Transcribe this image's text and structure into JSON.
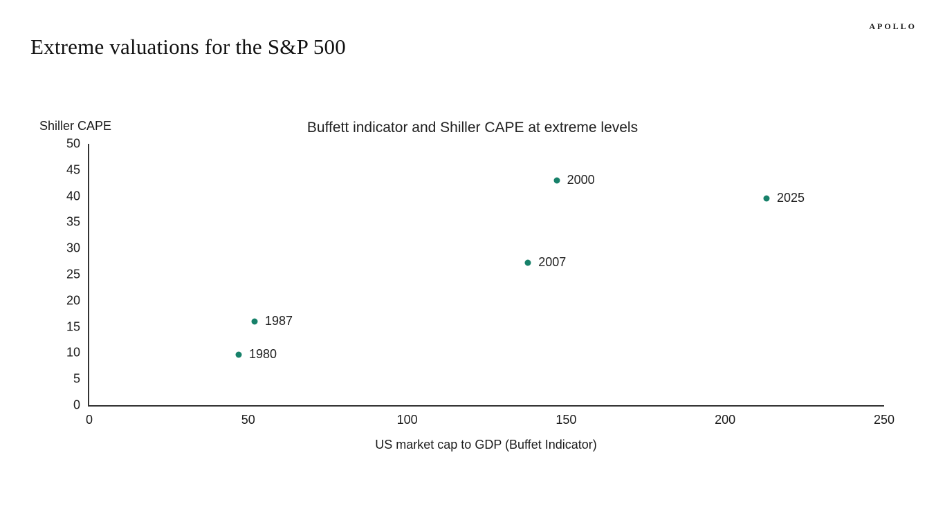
{
  "brand": {
    "logo_text": "APOLLO"
  },
  "page_title": "Extreme valuations for the S&P 500",
  "chart_data": {
    "type": "scatter",
    "title": "Buffett indicator and Shiller CAPE at extreme levels",
    "xlabel": "US market cap to GDP (Buffet Indicator)",
    "ylabel": "Shiller CAPE",
    "xlim": [
      0,
      250
    ],
    "ylim": [
      0,
      50
    ],
    "x_ticks": [
      0,
      50,
      100,
      150,
      200,
      250
    ],
    "y_ticks": [
      0,
      5,
      10,
      15,
      20,
      25,
      30,
      35,
      40,
      45,
      50
    ],
    "grid": false,
    "legend": "none",
    "point_color": "#17816a",
    "points": [
      {
        "label": "1980",
        "x": 47,
        "y": 9.7
      },
      {
        "label": "1987",
        "x": 52,
        "y": 16
      },
      {
        "label": "2007",
        "x": 138,
        "y": 27.3
      },
      {
        "label": "2000",
        "x": 147,
        "y": 43
      },
      {
        "label": "2025",
        "x": 213,
        "y": 39.5
      }
    ]
  }
}
